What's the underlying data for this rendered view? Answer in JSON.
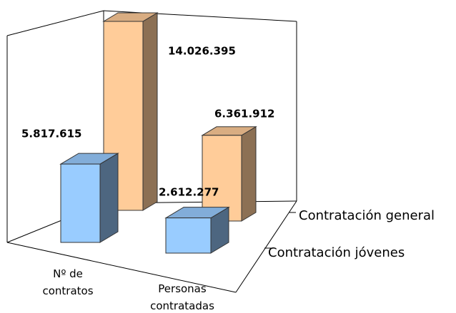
{
  "chart_data": {
    "type": "bar3d",
    "categories": [
      "Nº de contratos",
      "Personas contratadas"
    ],
    "series": [
      {
        "name": "Contratación general",
        "color": "#FFCC99",
        "values": [
          14026395,
          6361912
        ],
        "value_labels": [
          "14.026.395",
          "6.361.912"
        ]
      },
      {
        "name": "Contratación jóvenes",
        "color": "#99CCFF",
        "values": [
          5817615,
          2612277
        ],
        "value_labels": [
          "5.817.615",
          "2.612.277"
        ]
      }
    ]
  }
}
